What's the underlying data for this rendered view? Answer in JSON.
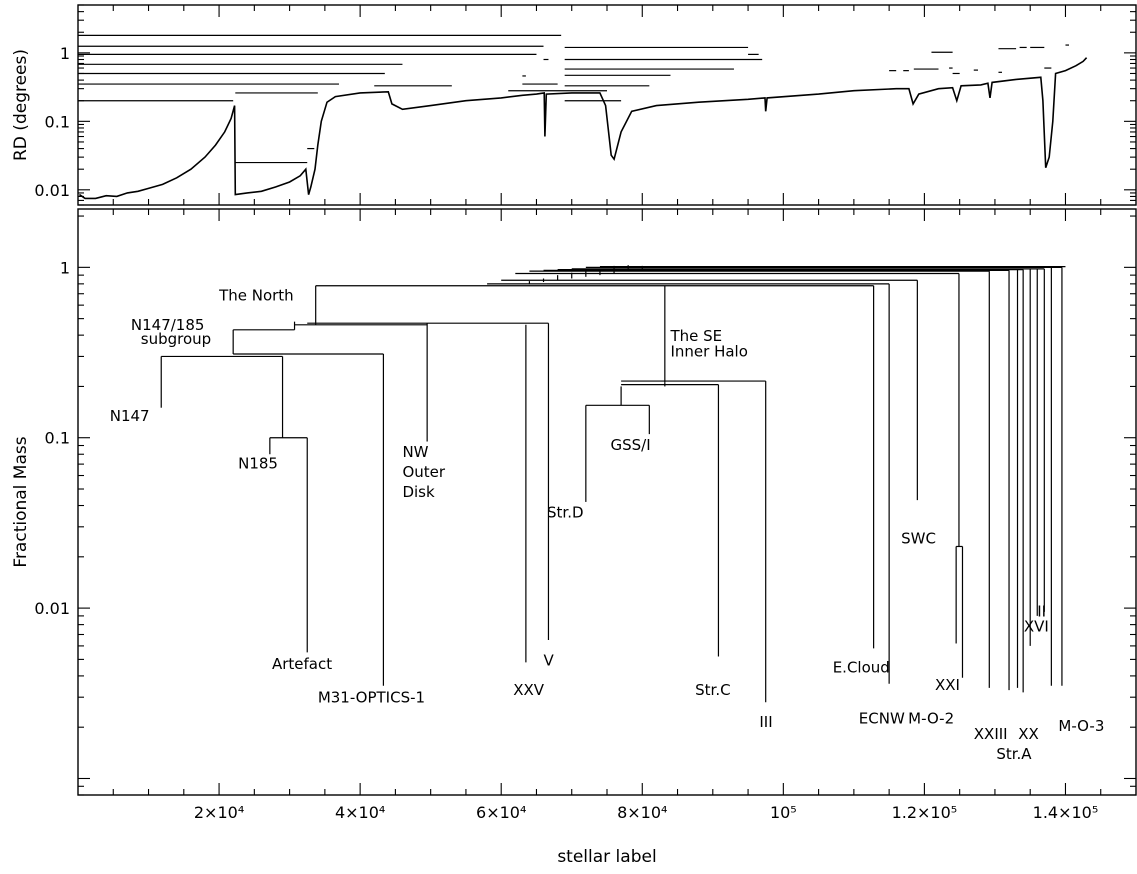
{
  "chart_data": [
    {
      "id": "rd-panel",
      "type": "line",
      "ylabel": "RD (degrees)",
      "xlim": [
        0,
        150000
      ],
      "ylim": [
        0.006,
        5
      ],
      "yscale": "log",
      "yticks": [
        {
          "v": 0.01,
          "label": "0.01"
        },
        {
          "v": 0.1,
          "label": "0.1"
        },
        {
          "v": 1,
          "label": "1"
        }
      ],
      "xticks": [
        20000,
        40000,
        60000,
        80000,
        100000,
        120000,
        140000
      ],
      "curve": [
        [
          200,
          0.0085
        ],
        [
          1000,
          0.0075
        ],
        [
          2500,
          0.0075
        ],
        [
          4000,
          0.0082
        ],
        [
          5500,
          0.008
        ],
        [
          7000,
          0.009
        ],
        [
          8500,
          0.0095
        ],
        [
          10000,
          0.0105
        ],
        [
          12000,
          0.012
        ],
        [
          14000,
          0.015
        ],
        [
          16000,
          0.02
        ],
        [
          18000,
          0.03
        ],
        [
          19500,
          0.045
        ],
        [
          20800,
          0.07
        ],
        [
          21700,
          0.11
        ],
        [
          22200,
          0.17
        ],
        [
          22300,
          0.0085
        ],
        [
          24000,
          0.009
        ],
        [
          26000,
          0.0095
        ],
        [
          28000,
          0.011
        ],
        [
          30000,
          0.013
        ],
        [
          31500,
          0.016
        ],
        [
          32300,
          0.02
        ],
        [
          32700,
          0.0085
        ],
        [
          33000,
          0.011
        ],
        [
          33600,
          0.02
        ],
        [
          34000,
          0.045
        ],
        [
          34500,
          0.1
        ],
        [
          35300,
          0.19
        ],
        [
          36500,
          0.23
        ],
        [
          40000,
          0.26
        ],
        [
          44000,
          0.27
        ],
        [
          44500,
          0.18
        ],
        [
          46000,
          0.15
        ],
        [
          50000,
          0.17
        ],
        [
          55000,
          0.2
        ],
        [
          60000,
          0.22
        ],
        [
          63000,
          0.24
        ],
        [
          65000,
          0.25
        ],
        [
          66100,
          0.26
        ],
        [
          66200,
          0.06
        ],
        [
          66400,
          0.25
        ],
        [
          70000,
          0.26
        ],
        [
          74000,
          0.26
        ],
        [
          74800,
          0.17
        ],
        [
          75600,
          0.032
        ],
        [
          76000,
          0.028
        ],
        [
          77000,
          0.07
        ],
        [
          78500,
          0.14
        ],
        [
          82000,
          0.17
        ],
        [
          88000,
          0.19
        ],
        [
          95000,
          0.21
        ],
        [
          97400,
          0.22
        ],
        [
          97500,
          0.14
        ],
        [
          97700,
          0.22
        ],
        [
          105000,
          0.25
        ],
        [
          110000,
          0.28
        ],
        [
          116000,
          0.3
        ],
        [
          117800,
          0.3
        ],
        [
          118400,
          0.18
        ],
        [
          119200,
          0.25
        ],
        [
          122000,
          0.3
        ],
        [
          124000,
          0.31
        ],
        [
          124600,
          0.2
        ],
        [
          125200,
          0.33
        ],
        [
          128000,
          0.34
        ],
        [
          129000,
          0.36
        ],
        [
          129300,
          0.22
        ],
        [
          129600,
          0.37
        ],
        [
          133000,
          0.41
        ],
        [
          136500,
          0.44
        ],
        [
          136800,
          0.2
        ],
        [
          137200,
          0.021
        ],
        [
          137700,
          0.03
        ],
        [
          138200,
          0.1
        ],
        [
          138600,
          0.5
        ],
        [
          140000,
          0.55
        ],
        [
          141500,
          0.65
        ],
        [
          142500,
          0.75
        ],
        [
          143000,
          0.85
        ]
      ],
      "segments": [
        [
          0,
          68500,
          1.8
        ],
        [
          69000,
          95000,
          1.2
        ],
        [
          0,
          66000,
          1.25
        ],
        [
          0,
          65000,
          0.95
        ],
        [
          95000,
          96500,
          0.95
        ],
        [
          69000,
          97000,
          0.8
        ],
        [
          0,
          46000,
          0.68
        ],
        [
          69000,
          93000,
          0.58
        ],
        [
          0,
          43500,
          0.5
        ],
        [
          69000,
          84000,
          0.47
        ],
        [
          0,
          37000,
          0.35
        ],
        [
          42000,
          53000,
          0.33
        ],
        [
          63000,
          68000,
          0.35
        ],
        [
          69000,
          81000,
          0.33
        ],
        [
          0,
          22000,
          0.2
        ],
        [
          22300,
          34000,
          0.26
        ],
        [
          61000,
          75000,
          0.28
        ],
        [
          69000,
          77000,
          0.2
        ],
        [
          22300,
          32500,
          0.025
        ],
        [
          32500,
          33500,
          0.04
        ],
        [
          63000,
          63500,
          0.46
        ],
        [
          66000,
          66700,
          0.8
        ],
        [
          115000,
          116000,
          0.55
        ],
        [
          117000,
          117800,
          0.55
        ],
        [
          118500,
          122000,
          0.58
        ],
        [
          121000,
          124000,
          1.02
        ],
        [
          123500,
          124000,
          0.6
        ],
        [
          124000,
          125000,
          0.5
        ],
        [
          127000,
          127600,
          0.56
        ],
        [
          130500,
          131000,
          0.52
        ],
        [
          130500,
          133000,
          1.15
        ],
        [
          133500,
          134500,
          1.2
        ],
        [
          135000,
          137000,
          1.2
        ],
        [
          137000,
          138000,
          0.6
        ],
        [
          140000,
          140500,
          1.3
        ]
      ]
    },
    {
      "id": "dendrogram-panel",
      "type": "dendrogram",
      "xlabel": "stellar label",
      "ylabel": "Fractional Mass",
      "xlim": [
        0,
        150000
      ],
      "ylim": [
        0.0008,
        2.2
      ],
      "yscale": "log",
      "yticks": [
        {
          "v": 0.01,
          "label": "0.01"
        },
        {
          "v": 0.1,
          "label": "0.1"
        },
        {
          "v": 1,
          "label": "1"
        }
      ],
      "xticks": [
        {
          "v": 20000,
          "label": "2×10⁴"
        },
        {
          "v": 40000,
          "label": "4×10⁴"
        },
        {
          "v": 60000,
          "label": "6×10⁴"
        },
        {
          "v": 80000,
          "label": "8×10⁴"
        },
        {
          "v": 100000,
          "label": "10⁵"
        },
        {
          "v": 120000,
          "label": "1.2×10⁵"
        },
        {
          "v": 140000,
          "label": "1.4×10⁵"
        }
      ],
      "verticals": [
        [
          11800,
          0.15,
          0.3
        ],
        [
          29000,
          0.1,
          0.3
        ],
        [
          27200,
          0.08,
          0.1
        ],
        [
          32500,
          0.0055,
          0.1
        ],
        [
          43300,
          0.0035,
          0.31
        ],
        [
          22000,
          0.31,
          0.43
        ],
        [
          49500,
          0.095,
          0.47
        ],
        [
          63500,
          0.0048,
          0.46
        ],
        [
          66700,
          0.0065,
          0.47
        ],
        [
          30700,
          0.43,
          0.48
        ],
        [
          33700,
          0.46,
          0.78
        ],
        [
          83200,
          0.21,
          0.78
        ],
        [
          72000,
          0.042,
          0.155
        ],
        [
          81000,
          0.105,
          0.155
        ],
        [
          77000,
          0.155,
          0.2
        ],
        [
          90800,
          0.0052,
          0.205
        ],
        [
          83200,
          0.2,
          0.21
        ],
        [
          97500,
          0.0028,
          0.215
        ],
        [
          112800,
          0.0058,
          0.78
        ],
        [
          115000,
          0.0036,
          0.8
        ],
        [
          119000,
          0.043,
          0.84
        ],
        [
          124500,
          0.0062,
          0.023
        ],
        [
          125400,
          0.0039,
          0.023
        ],
        [
          124900,
          0.023,
          0.92
        ],
        [
          129200,
          0.0034,
          0.95
        ],
        [
          132000,
          0.0033,
          0.96
        ],
        [
          133200,
          0.0034,
          0.97
        ],
        [
          134000,
          0.0032,
          0.97
        ],
        [
          135000,
          0.006,
          0.98
        ],
        [
          136000,
          0.009,
          0.98
        ],
        [
          137000,
          0.0095,
          0.98
        ],
        [
          138000,
          0.0035,
          1
        ],
        [
          139500,
          0.0035,
          1
        ],
        [
          64000,
          0.8,
          0.83
        ],
        [
          66000,
          0.82,
          0.86
        ],
        [
          68000,
          0.84,
          0.9
        ],
        [
          70000,
          0.86,
          0.93
        ],
        [
          72000,
          0.88,
          0.95
        ],
        [
          74000,
          0.9,
          0.97
        ],
        [
          76000,
          0.92,
          1.02
        ],
        [
          78000,
          0.95,
          1.03
        ],
        [
          80000,
          0.96,
          1.02
        ]
      ],
      "horizontals": [
        [
          11800,
          29000,
          0.3
        ],
        [
          27200,
          32500,
          0.1
        ],
        [
          22000,
          43300,
          0.31
        ],
        [
          22000,
          30700,
          0.43
        ],
        [
          30700,
          49500,
          0.46
        ],
        [
          32500,
          66700,
          0.47
        ],
        [
          33700,
          112800,
          0.78
        ],
        [
          72000,
          81000,
          0.155
        ],
        [
          77000,
          90800,
          0.205
        ],
        [
          77000,
          97500,
          0.215
        ],
        [
          124500,
          125400,
          0.023
        ],
        [
          58000,
          115000,
          0.8
        ],
        [
          60000,
          119000,
          0.84
        ],
        [
          62000,
          124900,
          0.92
        ],
        [
          64000,
          129200,
          0.95
        ],
        [
          66000,
          132000,
          0.96
        ],
        [
          68000,
          134000,
          0.97
        ],
        [
          70000,
          137000,
          0.98
        ],
        [
          72000,
          139500,
          1
        ],
        [
          74000,
          140000,
          1.01
        ]
      ],
      "labels": [
        {
          "text": "The North",
          "x": 20000,
          "y": 0.64,
          "anchor": "start"
        },
        {
          "text": "N147/185",
          "x": 7500,
          "y": 0.43,
          "anchor": "start"
        },
        {
          "text": "subgroup",
          "x": 8900,
          "y": 0.355,
          "anchor": "start"
        },
        {
          "text": "N147",
          "x": 4500,
          "y": 0.125,
          "anchor": "start"
        },
        {
          "text": "N185",
          "x": 22700,
          "y": 0.066,
          "anchor": "start"
        },
        {
          "text": "NW",
          "x": 46000,
          "y": 0.077,
          "anchor": "start"
        },
        {
          "text": "Outer",
          "x": 46000,
          "y": 0.059,
          "anchor": "start"
        },
        {
          "text": "Disk",
          "x": 46000,
          "y": 0.045,
          "anchor": "start"
        },
        {
          "text": "Artefact",
          "x": 27500,
          "y": 0.0044,
          "anchor": "start"
        },
        {
          "text": "M31-OPTICS-1",
          "x": 34000,
          "y": 0.0028,
          "anchor": "start"
        },
        {
          "text": "XXV",
          "x": 61700,
          "y": 0.0031,
          "anchor": "start"
        },
        {
          "text": "V",
          "x": 66000,
          "y": 0.0046,
          "anchor": "start"
        },
        {
          "text": "The SE",
          "x": 84000,
          "y": 0.37,
          "anchor": "start"
        },
        {
          "text": "Inner Halo",
          "x": 84000,
          "y": 0.3,
          "anchor": "start"
        },
        {
          "text": "GSS/I",
          "x": 75500,
          "y": 0.085,
          "anchor": "start"
        },
        {
          "text": "Str.D",
          "x": 66500,
          "y": 0.034,
          "anchor": "start"
        },
        {
          "text": "Str.C",
          "x": 87500,
          "y": 0.0031,
          "anchor": "start"
        },
        {
          "text": "III",
          "x": 96600,
          "y": 0.002,
          "anchor": "start"
        },
        {
          "text": "E.Cloud",
          "x": 107000,
          "y": 0.0042,
          "anchor": "start"
        },
        {
          "text": "ECNW",
          "x": 110700,
          "y": 0.0021,
          "anchor": "start"
        },
        {
          "text": "SWC",
          "x": 116700,
          "y": 0.024,
          "anchor": "start"
        },
        {
          "text": "XXI",
          "x": 121500,
          "y": 0.0033,
          "anchor": "start"
        },
        {
          "text": "M-O-2",
          "x": 117700,
          "y": 0.0021,
          "anchor": "start"
        },
        {
          "text": "XXIII",
          "x": 127000,
          "y": 0.0017,
          "anchor": "start"
        },
        {
          "text": "Str.A",
          "x": 130200,
          "y": 0.0013,
          "anchor": "start"
        },
        {
          "text": "XX",
          "x": 133300,
          "y": 0.0017,
          "anchor": "start"
        },
        {
          "text": "XVI",
          "x": 134100,
          "y": 0.0073,
          "anchor": "start"
        },
        {
          "text": "II",
          "x": 136000,
          "y": 0.0089,
          "anchor": "start"
        },
        {
          "text": "M-O-3",
          "x": 139000,
          "y": 0.0019,
          "anchor": "start"
        }
      ]
    }
  ]
}
